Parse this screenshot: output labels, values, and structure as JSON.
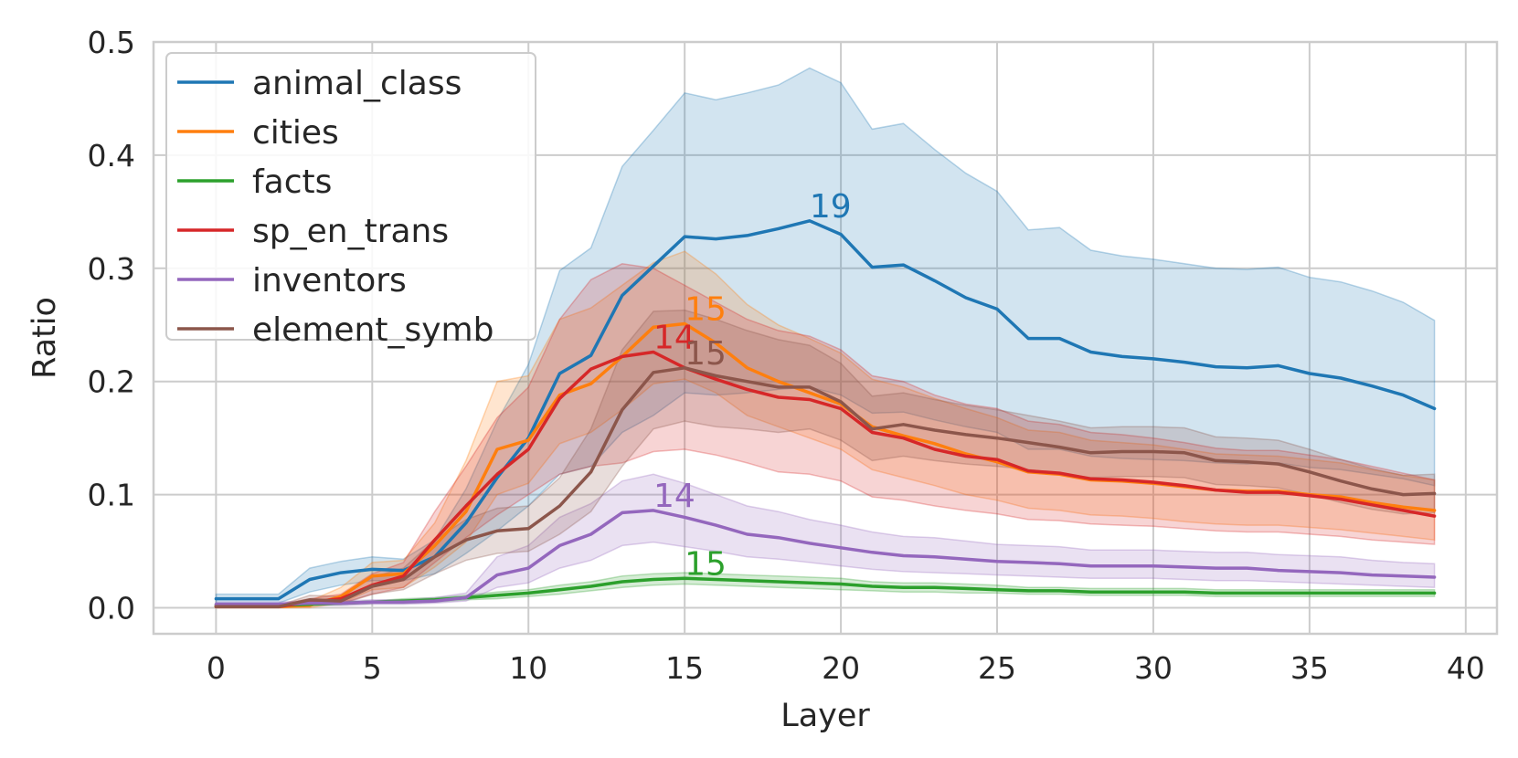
{
  "chart_data": {
    "type": "line",
    "title": "",
    "xlabel": "Layer",
    "ylabel": "Ratio",
    "xlim": [
      -2,
      41
    ],
    "ylim": [
      -0.023,
      0.5
    ],
    "xticks": [
      0,
      5,
      10,
      15,
      20,
      25,
      30,
      35,
      40
    ],
    "yticks": [
      0.0,
      0.1,
      0.2,
      0.3,
      0.4,
      0.5
    ],
    "xtick_labels": [
      "0",
      "5",
      "10",
      "15",
      "20",
      "25",
      "30",
      "35",
      "40"
    ],
    "ytick_labels": [
      "0.0",
      "0.1",
      "0.2",
      "0.3",
      "0.4",
      "0.5"
    ],
    "grid": true,
    "legend_position": "top-left",
    "x": [
      0,
      1,
      2,
      3,
      4,
      5,
      6,
      7,
      8,
      9,
      10,
      11,
      12,
      13,
      14,
      15,
      16,
      17,
      18,
      19,
      20,
      21,
      22,
      23,
      24,
      25,
      26,
      27,
      28,
      29,
      30,
      31,
      32,
      33,
      34,
      35,
      36,
      37,
      38,
      39
    ],
    "series": [
      {
        "name": "animal_class",
        "color": "#1f77b4",
        "peak_layer": 19,
        "peak_label": "19",
        "values": [
          0.008,
          0.008,
          0.008,
          0.025,
          0.031,
          0.034,
          0.033,
          0.045,
          0.075,
          0.115,
          0.15,
          0.207,
          0.223,
          0.276,
          0.302,
          0.328,
          0.326,
          0.329,
          0.335,
          0.342,
          0.33,
          0.301,
          0.303,
          0.289,
          0.274,
          0.264,
          0.238,
          0.238,
          0.226,
          0.222,
          0.22,
          0.217,
          0.213,
          0.212,
          0.214,
          0.207,
          0.203,
          0.196,
          0.188,
          0.176
        ],
        "lower": [
          0.004,
          0.004,
          0.004,
          0.014,
          0.02,
          0.024,
          0.024,
          0.03,
          0.048,
          0.068,
          0.09,
          0.118,
          0.125,
          0.155,
          0.17,
          0.19,
          0.188,
          0.19,
          0.193,
          0.195,
          0.188,
          0.172,
          0.173,
          0.166,
          0.16,
          0.155,
          0.14,
          0.14,
          0.134,
          0.132,
          0.131,
          0.13,
          0.128,
          0.127,
          0.128,
          0.124,
          0.122,
          0.118,
          0.114,
          0.108
        ],
        "upper": [
          0.012,
          0.012,
          0.012,
          0.035,
          0.041,
          0.045,
          0.043,
          0.06,
          0.105,
          0.165,
          0.215,
          0.298,
          0.318,
          0.39,
          0.422,
          0.455,
          0.449,
          0.455,
          0.462,
          0.477,
          0.464,
          0.423,
          0.428,
          0.405,
          0.384,
          0.368,
          0.334,
          0.336,
          0.316,
          0.311,
          0.308,
          0.304,
          0.3,
          0.299,
          0.301,
          0.292,
          0.288,
          0.28,
          0.27,
          0.254
        ]
      },
      {
        "name": "cities",
        "color": "#ff7f0e",
        "peak_layer": 15,
        "peak_label": "15",
        "values": [
          0.001,
          0.001,
          0.001,
          0.002,
          0.01,
          0.028,
          0.03,
          0.055,
          0.085,
          0.14,
          0.148,
          0.188,
          0.198,
          0.222,
          0.248,
          0.251,
          0.234,
          0.212,
          0.2,
          0.19,
          0.18,
          0.16,
          0.152,
          0.145,
          0.136,
          0.129,
          0.12,
          0.118,
          0.113,
          0.112,
          0.11,
          0.107,
          0.104,
          0.103,
          0.103,
          0.1,
          0.098,
          0.093,
          0.089,
          0.086
        ],
        "lower": [
          0.0,
          0.0,
          0.0,
          0.0,
          0.004,
          0.016,
          0.018,
          0.036,
          0.058,
          0.1,
          0.11,
          0.145,
          0.155,
          0.175,
          0.198,
          0.202,
          0.19,
          0.17,
          0.16,
          0.15,
          0.14,
          0.122,
          0.115,
          0.108,
          0.1,
          0.095,
          0.088,
          0.086,
          0.082,
          0.081,
          0.079,
          0.076,
          0.074,
          0.073,
          0.073,
          0.071,
          0.069,
          0.066,
          0.063,
          0.06
        ],
        "upper": [
          0.003,
          0.003,
          0.003,
          0.006,
          0.018,
          0.04,
          0.042,
          0.075,
          0.13,
          0.2,
          0.205,
          0.255,
          0.265,
          0.285,
          0.305,
          0.315,
          0.295,
          0.268,
          0.25,
          0.238,
          0.225,
          0.202,
          0.195,
          0.185,
          0.176,
          0.168,
          0.157,
          0.155,
          0.148,
          0.146,
          0.144,
          0.14,
          0.136,
          0.135,
          0.134,
          0.131,
          0.128,
          0.122,
          0.117,
          0.113
        ]
      },
      {
        "name": "facts",
        "color": "#2ca02c",
        "peak_layer": 15,
        "peak_label": "15",
        "values": [
          0.002,
          0.002,
          0.002,
          0.003,
          0.004,
          0.005,
          0.006,
          0.007,
          0.009,
          0.011,
          0.013,
          0.016,
          0.019,
          0.023,
          0.025,
          0.026,
          0.025,
          0.024,
          0.023,
          0.022,
          0.021,
          0.019,
          0.018,
          0.018,
          0.017,
          0.016,
          0.015,
          0.015,
          0.014,
          0.014,
          0.014,
          0.014,
          0.013,
          0.013,
          0.013,
          0.013,
          0.013,
          0.013,
          0.013,
          0.013
        ],
        "lower": [
          0.001,
          0.001,
          0.001,
          0.002,
          0.003,
          0.004,
          0.004,
          0.005,
          0.007,
          0.008,
          0.01,
          0.012,
          0.015,
          0.018,
          0.02,
          0.021,
          0.02,
          0.019,
          0.018,
          0.017,
          0.016,
          0.015,
          0.014,
          0.014,
          0.013,
          0.013,
          0.012,
          0.012,
          0.011,
          0.011,
          0.011,
          0.011,
          0.01,
          0.01,
          0.01,
          0.01,
          0.01,
          0.01,
          0.01,
          0.01
        ],
        "upper": [
          0.003,
          0.003,
          0.003,
          0.004,
          0.005,
          0.006,
          0.008,
          0.009,
          0.011,
          0.014,
          0.016,
          0.02,
          0.023,
          0.028,
          0.03,
          0.031,
          0.03,
          0.029,
          0.028,
          0.027,
          0.026,
          0.023,
          0.022,
          0.022,
          0.021,
          0.02,
          0.018,
          0.018,
          0.017,
          0.017,
          0.017,
          0.017,
          0.016,
          0.016,
          0.016,
          0.016,
          0.016,
          0.016,
          0.016,
          0.016
        ]
      },
      {
        "name": "sp_en_trans",
        "color": "#d62728",
        "peak_layer": 14,
        "peak_label": "14",
        "values": [
          0.001,
          0.001,
          0.001,
          0.005,
          0.008,
          0.02,
          0.028,
          0.06,
          0.09,
          0.118,
          0.14,
          0.185,
          0.211,
          0.222,
          0.226,
          0.212,
          0.202,
          0.193,
          0.186,
          0.184,
          0.176,
          0.155,
          0.15,
          0.14,
          0.134,
          0.131,
          0.121,
          0.119,
          0.114,
          0.113,
          0.111,
          0.108,
          0.104,
          0.102,
          0.102,
          0.099,
          0.096,
          0.091,
          0.086,
          0.081
        ],
        "lower": [
          0.0,
          0.0,
          0.0,
          0.002,
          0.004,
          0.012,
          0.018,
          0.04,
          0.062,
          0.082,
          0.1,
          0.118,
          0.125,
          0.128,
          0.138,
          0.14,
          0.135,
          0.128,
          0.12,
          0.118,
          0.112,
          0.098,
          0.095,
          0.09,
          0.086,
          0.083,
          0.078,
          0.077,
          0.074,
          0.073,
          0.072,
          0.07,
          0.068,
          0.067,
          0.067,
          0.065,
          0.063,
          0.06,
          0.058,
          0.056
        ],
        "upper": [
          0.003,
          0.003,
          0.003,
          0.008,
          0.012,
          0.03,
          0.04,
          0.085,
          0.125,
          0.168,
          0.195,
          0.255,
          0.29,
          0.304,
          0.3,
          0.285,
          0.27,
          0.255,
          0.245,
          0.24,
          0.228,
          0.205,
          0.2,
          0.188,
          0.18,
          0.176,
          0.165,
          0.162,
          0.155,
          0.153,
          0.15,
          0.146,
          0.141,
          0.139,
          0.139,
          0.135,
          0.131,
          0.125,
          0.119,
          0.113
        ]
      },
      {
        "name": "inventors",
        "color": "#9467bd",
        "peak_layer": 14,
        "peak_label": "14",
        "values": [
          0.003,
          0.003,
          0.003,
          0.004,
          0.004,
          0.005,
          0.005,
          0.006,
          0.009,
          0.029,
          0.035,
          0.055,
          0.065,
          0.084,
          0.086,
          0.08,
          0.073,
          0.065,
          0.062,
          0.057,
          0.053,
          0.049,
          0.046,
          0.045,
          0.043,
          0.041,
          0.04,
          0.039,
          0.037,
          0.037,
          0.037,
          0.036,
          0.035,
          0.035,
          0.033,
          0.032,
          0.031,
          0.029,
          0.028,
          0.027
        ],
        "lower": [
          0.001,
          0.001,
          0.001,
          0.002,
          0.002,
          0.003,
          0.003,
          0.004,
          0.006,
          0.018,
          0.022,
          0.035,
          0.042,
          0.055,
          0.058,
          0.054,
          0.05,
          0.045,
          0.043,
          0.04,
          0.037,
          0.034,
          0.032,
          0.031,
          0.03,
          0.029,
          0.028,
          0.027,
          0.026,
          0.026,
          0.026,
          0.025,
          0.024,
          0.024,
          0.023,
          0.022,
          0.021,
          0.02,
          0.019,
          0.018
        ],
        "upper": [
          0.005,
          0.005,
          0.005,
          0.006,
          0.006,
          0.007,
          0.007,
          0.009,
          0.013,
          0.045,
          0.055,
          0.08,
          0.092,
          0.112,
          0.118,
          0.11,
          0.1,
          0.09,
          0.085,
          0.078,
          0.073,
          0.067,
          0.063,
          0.062,
          0.059,
          0.056,
          0.055,
          0.054,
          0.051,
          0.051,
          0.051,
          0.05,
          0.049,
          0.049,
          0.047,
          0.046,
          0.045,
          0.042,
          0.04,
          0.039
        ]
      },
      {
        "name": "element_symb",
        "color": "#8c564b",
        "peak_layer": 15,
        "peak_label": "15",
        "values": [
          0.001,
          0.001,
          0.001,
          0.007,
          0.006,
          0.019,
          0.025,
          0.045,
          0.06,
          0.068,
          0.07,
          0.09,
          0.12,
          0.175,
          0.208,
          0.212,
          0.205,
          0.2,
          0.195,
          0.195,
          0.182,
          0.158,
          0.162,
          0.157,
          0.153,
          0.15,
          0.146,
          0.142,
          0.137,
          0.138,
          0.138,
          0.137,
          0.13,
          0.129,
          0.127,
          0.12,
          0.112,
          0.105,
          0.1,
          0.101
        ],
        "lower": [
          0.0,
          0.0,
          0.0,
          0.004,
          0.003,
          0.012,
          0.016,
          0.03,
          0.042,
          0.048,
          0.05,
          0.065,
          0.085,
          0.125,
          0.158,
          0.165,
          0.16,
          0.158,
          0.155,
          0.158,
          0.148,
          0.13,
          0.134,
          0.13,
          0.127,
          0.125,
          0.122,
          0.119,
          0.115,
          0.116,
          0.116,
          0.115,
          0.109,
          0.108,
          0.106,
          0.1,
          0.093,
          0.087,
          0.083,
          0.084
        ],
        "upper": [
          0.002,
          0.002,
          0.002,
          0.011,
          0.01,
          0.027,
          0.035,
          0.06,
          0.078,
          0.088,
          0.09,
          0.115,
          0.158,
          0.228,
          0.262,
          0.263,
          0.255,
          0.245,
          0.237,
          0.232,
          0.216,
          0.187,
          0.19,
          0.184,
          0.179,
          0.175,
          0.17,
          0.165,
          0.159,
          0.16,
          0.16,
          0.159,
          0.151,
          0.15,
          0.148,
          0.14,
          0.131,
          0.123,
          0.117,
          0.118
        ]
      }
    ]
  }
}
